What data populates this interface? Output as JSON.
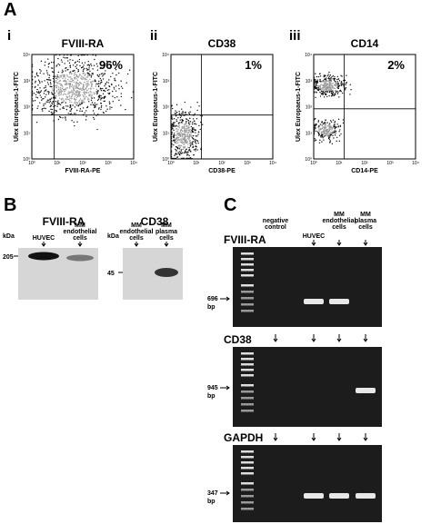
{
  "panels": {
    "A": {
      "label": "A",
      "axis_ticks": [
        "10⁰",
        "10¹",
        "10²",
        "10³",
        "10⁴"
      ],
      "plots": [
        {
          "numeral": "i",
          "title": "FVIII-RA",
          "percent": "96%",
          "y_label": "Ulex Europaeus-1-FITC",
          "x_label": "FVIII-RA-PE"
        },
        {
          "numeral": "ii",
          "title": "CD38",
          "percent": "1%",
          "y_label": "Ulex Europaeus-1-FITC",
          "x_label": "CD38-PE"
        },
        {
          "numeral": "iii",
          "title": "CD14",
          "percent": "2%",
          "y_label": "Ulex Europaeus-1-FITC",
          "x_label": "CD14-PE"
        }
      ]
    },
    "B": {
      "label": "B",
      "blots": [
        {
          "title": "FVIII-RA",
          "unit": "kDa",
          "marker": "205",
          "lanes": [
            "HUVEC",
            "MM endothelial cells"
          ]
        },
        {
          "title": "CD38",
          "unit": "kDa",
          "marker": "45",
          "lanes": [
            "MM endothelial cells",
            "MM plasma cells"
          ]
        }
      ]
    },
    "C": {
      "label": "C",
      "lanes": [
        "negative control",
        "HUVEC",
        "MM endothelial cells",
        "MM plasma cells"
      ],
      "gels": [
        {
          "title": "FVIII-RA",
          "size": "696",
          "unit": "bp"
        },
        {
          "title": "CD38",
          "size": "945",
          "unit": "bp"
        },
        {
          "title": "GAPDH",
          "size": "347",
          "unit": "bp"
        }
      ]
    }
  }
}
